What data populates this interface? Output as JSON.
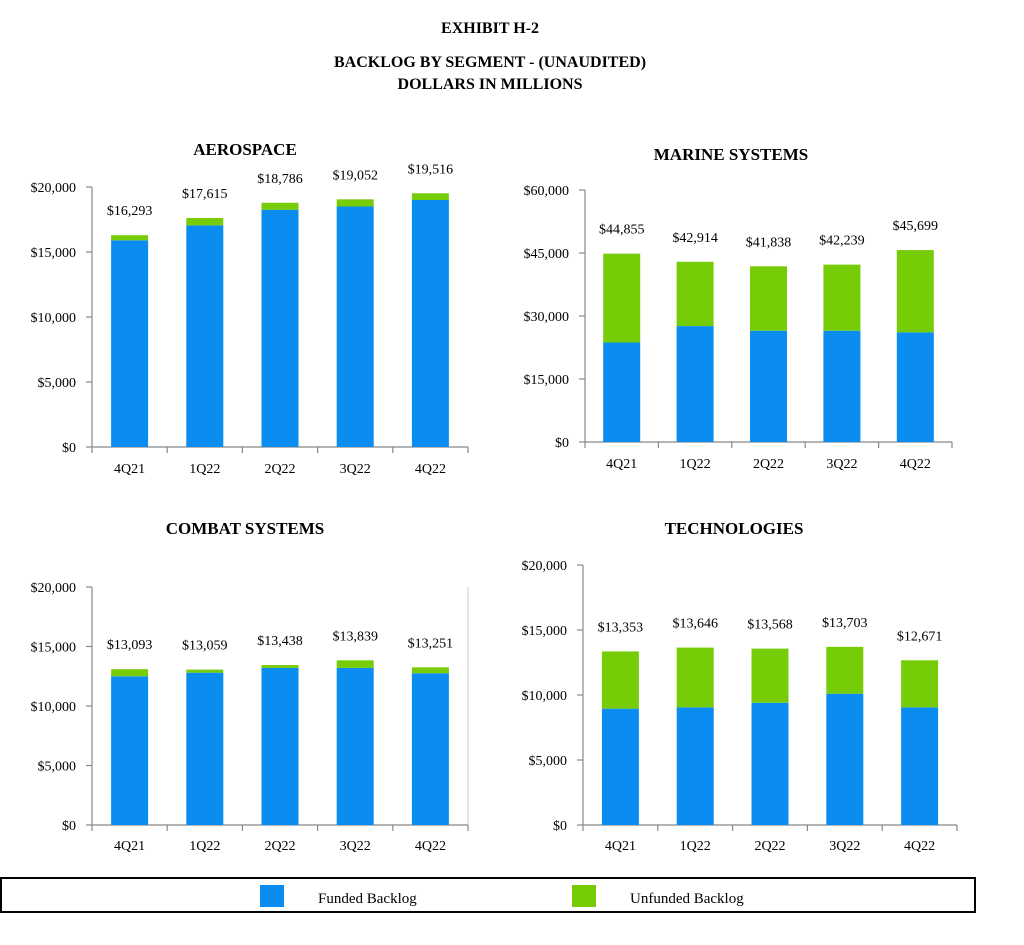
{
  "header": {
    "exhibit": "EXHIBIT H-2",
    "title": "BACKLOG BY SEGMENT - (UNAUDITED)",
    "units": "DOLLARS IN MILLIONS"
  },
  "colors": {
    "funded": "#0a8cf0",
    "unfunded": "#77cc08",
    "axis": "#888888"
  },
  "legend": {
    "funded_label": "Funded Backlog",
    "unfunded_label": "Unfunded Backlog"
  },
  "chart_data": [
    {
      "type": "bar",
      "stacked": true,
      "title": "AEROSPACE",
      "categories": [
        "4Q21",
        "1Q22",
        "2Q22",
        "3Q22",
        "4Q22"
      ],
      "series": [
        {
          "name": "Funded Backlog",
          "values": [
            15900,
            17050,
            18250,
            18500,
            19000
          ]
        },
        {
          "name": "Unfunded Backlog",
          "values": [
            393,
            565,
            536,
            552,
            516
          ]
        }
      ],
      "totals": [
        "$16,293",
        "$17,615",
        "$18,786",
        "$19,052",
        "$19,516"
      ],
      "ylim": [
        0,
        20000
      ],
      "yticks": [
        0,
        5000,
        10000,
        15000,
        20000
      ],
      "ytick_labels": [
        "$0",
        "$5,000",
        "$10,000",
        "$15,000",
        "$20,000"
      ]
    },
    {
      "type": "bar",
      "stacked": true,
      "title": "MARINE SYSTEMS",
      "categories": [
        "4Q21",
        "1Q22",
        "2Q22",
        "3Q22",
        "4Q22"
      ],
      "series": [
        {
          "name": "Funded Backlog",
          "values": [
            23700,
            27600,
            26500,
            26500,
            26100
          ]
        },
        {
          "name": "Unfunded Backlog",
          "values": [
            21155,
            15314,
            15338,
            15739,
            19599
          ]
        }
      ],
      "totals": [
        "$44,855",
        "$42,914",
        "$41,838",
        "$42,239",
        "$45,699"
      ],
      "ylim": [
        0,
        60000
      ],
      "yticks": [
        0,
        15000,
        30000,
        45000,
        60000
      ],
      "ytick_labels": [
        "$0",
        "$15,000",
        "$30,000",
        "$45,000",
        "$60,000"
      ]
    },
    {
      "type": "bar",
      "stacked": true,
      "title": "COMBAT SYSTEMS",
      "categories": [
        "4Q21",
        "1Q22",
        "2Q22",
        "3Q22",
        "4Q22"
      ],
      "series": [
        {
          "name": "Funded Backlog",
          "values": [
            12500,
            12800,
            13200,
            13200,
            12750
          ]
        },
        {
          "name": "Unfunded Backlog",
          "values": [
            593,
            259,
            238,
            639,
            501
          ]
        }
      ],
      "totals": [
        "$13,093",
        "$13,059",
        "$13,438",
        "$13,839",
        "$13,251"
      ],
      "ylim": [
        0,
        20000
      ],
      "yticks": [
        0,
        5000,
        10000,
        15000,
        20000
      ],
      "ytick_labels": [
        "$0",
        "$5,000",
        "$10,000",
        "$15,000",
        "$20,000"
      ]
    },
    {
      "type": "bar",
      "stacked": true,
      "title": "TECHNOLOGIES",
      "categories": [
        "4Q21",
        "1Q22",
        "2Q22",
        "3Q22",
        "4Q22"
      ],
      "series": [
        {
          "name": "Funded Backlog",
          "values": [
            8950,
            9050,
            9400,
            10100,
            9050
          ]
        },
        {
          "name": "Unfunded Backlog",
          "values": [
            4403,
            4596,
            4168,
            3603,
            3621
          ]
        }
      ],
      "totals": [
        "$13,353",
        "$13,646",
        "$13,568",
        "$13,703",
        "$12,671"
      ],
      "ylim": [
        0,
        20000
      ],
      "yticks": [
        0,
        5000,
        10000,
        15000,
        20000
      ],
      "ytick_labels": [
        "$0",
        "$5,000",
        "$10,000",
        "$15,000",
        "$20,000"
      ]
    }
  ]
}
